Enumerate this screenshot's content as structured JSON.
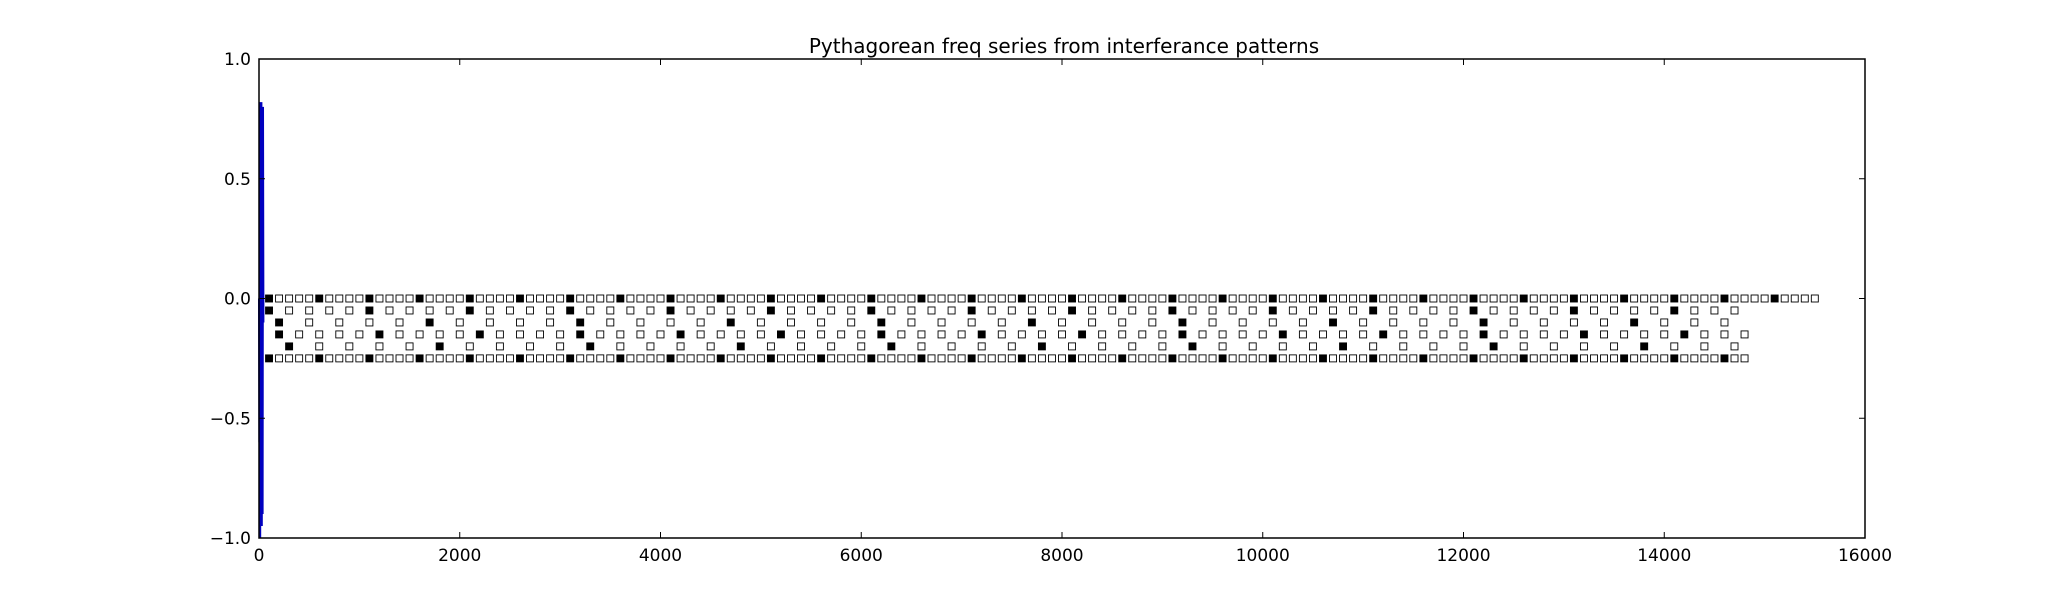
{
  "chart_data": {
    "type": "scatter",
    "title": "Pythagorean freq series from interferance patterns",
    "xlabel": "",
    "ylabel": "",
    "xlim": [
      0,
      16000
    ],
    "ylim": [
      -1.0,
      1.0
    ],
    "x_ticks": [
      0,
      2000,
      4000,
      6000,
      8000,
      10000,
      12000,
      14000,
      16000
    ],
    "x_tick_labels": [
      "0",
      "2000",
      "4000",
      "6000",
      "8000",
      "10000",
      "12000",
      "14000",
      "16000"
    ],
    "y_ticks": [
      1.0,
      0.5,
      0.0,
      -0.5,
      -1.0
    ],
    "y_tick_labels": [
      "1.0",
      "0.5",
      "0.0",
      "−0.5",
      "−1.0"
    ],
    "grid": false,
    "line_series": {
      "color": "#0000bf",
      "x": [
        0,
        4,
        8,
        12,
        16,
        20,
        24,
        28,
        32,
        36,
        40,
        44
      ],
      "y": [
        0.0,
        -0.6,
        0.82,
        -1.0,
        0.5,
        -0.4,
        0.82,
        -0.95,
        0.3,
        -0.9,
        0.8,
        -0.1
      ]
    },
    "marker_rows": [
      {
        "y": 0.0,
        "x_start": 100,
        "step": 100,
        "count": 155,
        "filled_every": 5
      },
      {
        "y": -0.05,
        "x_start": 100,
        "step": 200,
        "count": 74,
        "filled_every": 5
      },
      {
        "y": -0.1,
        "x_start": 200,
        "step": 300,
        "count": 49,
        "filled_every": 5
      },
      {
        "y": -0.15,
        "x_start": 200,
        "step": 200,
        "count": 74,
        "filled_every": 5
      },
      {
        "y": -0.2,
        "x_start": 300,
        "step": 300,
        "count": 49,
        "filled_every": 5
      },
      {
        "y": -0.25,
        "x_start": 100,
        "step": 100,
        "count": 148,
        "filled_every": 5
      }
    ],
    "marker_colors": {
      "filled": "#000000",
      "hollow": "#ffffff",
      "edge": "#000000"
    }
  }
}
